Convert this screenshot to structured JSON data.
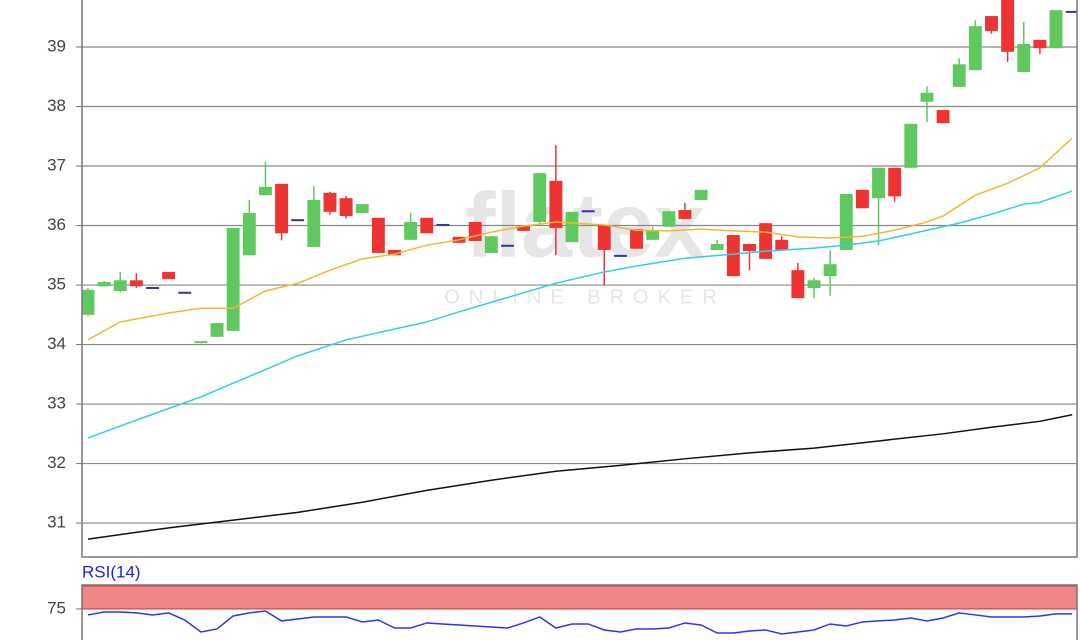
{
  "chart_data": [
    {
      "type": "candlestick",
      "watermark": {
        "title": "flatex",
        "subtitle": "ONLINE BROKER"
      },
      "xlim": [
        -0.37,
        61.3
      ],
      "ylim": [
        30.43,
        39.79
      ],
      "yticks": [
        31,
        32,
        33,
        34,
        35,
        36,
        37,
        38,
        39
      ],
      "grid": true,
      "up_color": "#5fc95f",
      "down_color": "#ee3333",
      "doji_color": "#3333aa",
      "candles": {
        "open": [
          34.5,
          34.98,
          34.9,
          35.08,
          34.95,
          35.22,
          34.87,
          34.02,
          34.13,
          34.23,
          35.5,
          36.51,
          36.7,
          36.09,
          35.64,
          36.55,
          36.46,
          36.21,
          36.13,
          35.59,
          35.76,
          36.13,
          36.01,
          35.81,
          36.06,
          35.54,
          35.66,
          35.99,
          36.06,
          36.75,
          35.72,
          36.24,
          36.01,
          35.49,
          35.94,
          35.76,
          35.98,
          36.26,
          36.43,
          35.59,
          35.84,
          35.69,
          36.04,
          35.76,
          35.25,
          34.95,
          35.15,
          35.59,
          36.6,
          36.46,
          36.97,
          36.97,
          38.08,
          37.94,
          38.33,
          38.61,
          39.52,
          39.8,
          38.58,
          39.12,
          38.98,
          39.59
        ],
        "high": [
          34.95,
          35.07,
          35.22,
          35.2,
          34.95,
          35.22,
          34.87,
          34.04,
          34.36,
          35.96,
          36.43,
          37.07,
          36.7,
          36.09,
          36.66,
          36.57,
          36.5,
          36.36,
          36.13,
          35.59,
          36.21,
          36.13,
          36.01,
          35.81,
          36.06,
          35.82,
          35.66,
          35.99,
          36.88,
          37.35,
          36.23,
          36.24,
          36.01,
          35.49,
          35.94,
          35.98,
          36.24,
          36.38,
          36.6,
          35.76,
          35.84,
          35.69,
          36.04,
          35.82,
          35.37,
          35.12,
          35.59,
          36.53,
          36.6,
          36.97,
          36.97,
          37.71,
          38.34,
          37.94,
          38.81,
          39.45,
          39.52,
          39.85,
          39.42,
          39.12,
          39.62,
          39.59
        ],
        "low": [
          34.48,
          34.97,
          34.88,
          34.95,
          34.95,
          35.1,
          34.87,
          34.02,
          34.13,
          34.23,
          35.5,
          36.51,
          35.75,
          36.09,
          35.64,
          36.18,
          36.12,
          36.21,
          35.54,
          35.5,
          35.76,
          35.87,
          36.01,
          35.71,
          35.74,
          35.54,
          35.66,
          35.91,
          36.02,
          35.5,
          35.72,
          36.24,
          35.0,
          35.49,
          35.61,
          35.76,
          35.98,
          36.11,
          36.43,
          35.59,
          35.15,
          35.25,
          35.44,
          35.59,
          34.78,
          34.78,
          34.82,
          35.59,
          36.29,
          35.67,
          36.4,
          36.97,
          37.74,
          37.72,
          38.33,
          38.61,
          39.22,
          38.75,
          38.58,
          38.88,
          38.98,
          39.59
        ],
        "close": [
          34.92,
          35.05,
          35.08,
          34.98,
          34.95,
          35.1,
          34.87,
          34.04,
          34.36,
          35.96,
          36.21,
          36.65,
          35.87,
          36.09,
          36.43,
          36.23,
          36.16,
          36.36,
          35.54,
          35.5,
          36.06,
          35.87,
          36.01,
          35.71,
          35.74,
          35.82,
          35.66,
          35.91,
          36.88,
          35.96,
          36.23,
          36.24,
          35.59,
          35.49,
          35.61,
          35.92,
          36.24,
          36.11,
          36.6,
          35.69,
          35.15,
          35.57,
          35.44,
          35.59,
          34.78,
          35.08,
          35.35,
          36.53,
          36.29,
          36.97,
          36.49,
          37.71,
          38.23,
          37.72,
          38.71,
          39.35,
          39.27,
          38.92,
          39.05,
          38.98,
          39.62,
          39.59
        ]
      },
      "series": [
        {
          "color": "#f5b731",
          "x": [
            0,
            2,
            5,
            7,
            9,
            11,
            13,
            15,
            17,
            19,
            21,
            23,
            25,
            27,
            29,
            32,
            34,
            36,
            38,
            40,
            42,
            44,
            46,
            48,
            50,
            52,
            53,
            55,
            57,
            59,
            61
          ],
          "values": [
            34.08,
            34.38,
            34.53,
            34.61,
            34.61,
            34.9,
            35.03,
            35.25,
            35.44,
            35.52,
            35.67,
            35.76,
            35.89,
            35.99,
            36.06,
            36.01,
            35.92,
            35.91,
            35.94,
            35.91,
            35.89,
            35.81,
            35.79,
            35.82,
            35.92,
            36.06,
            36.16,
            36.51,
            36.71,
            36.97,
            37.47
          ]
        },
        {
          "color": "#33ccee",
          "x": [
            0,
            3,
            7,
            9,
            13,
            16,
            21,
            23,
            27,
            29,
            32,
            34,
            37,
            40,
            42,
            45,
            47,
            49,
            51,
            54,
            56,
            58,
            59,
            61
          ],
          "values": [
            32.43,
            32.73,
            33.12,
            33.35,
            33.81,
            34.08,
            34.38,
            34.55,
            34.87,
            35.03,
            35.22,
            35.32,
            35.45,
            35.52,
            35.57,
            35.62,
            35.67,
            35.74,
            35.86,
            36.04,
            36.19,
            36.36,
            36.39,
            36.58
          ]
        },
        {
          "color": "#111111",
          "x": [
            0,
            5,
            9,
            13,
            17,
            21,
            25,
            29,
            33,
            37,
            41,
            45,
            49,
            53,
            56,
            59,
            61
          ],
          "values": [
            30.73,
            30.92,
            31.05,
            31.18,
            31.35,
            31.55,
            31.72,
            31.87,
            31.97,
            32.08,
            32.18,
            32.26,
            32.38,
            32.5,
            32.61,
            32.71,
            32.82
          ]
        }
      ]
    },
    {
      "type": "line",
      "title": "RSI(14)",
      "xlim": [
        -0.37,
        61.3
      ],
      "ylim": [
        41.3,
        101
      ],
      "yticks": [
        75
      ],
      "band": [
        75,
        100
      ],
      "band_color": "#f28585",
      "color": "#3333ee",
      "values": [
        68.5,
        71.7,
        71.7,
        70.7,
        68.5,
        70.7,
        63.0,
        50.0,
        53.3,
        67.4,
        70.7,
        72.8,
        62.0,
        64.1,
        66.3,
        66.3,
        66.3,
        60.9,
        63.0,
        54.3,
        54.3,
        59.8,
        58.7,
        57.6,
        56.5,
        55.4,
        54.3,
        59.8,
        66.3,
        54.3,
        58.7,
        58.7,
        52.2,
        50.0,
        53.3,
        53.3,
        54.3,
        59.8,
        57.6,
        48.9,
        48.9,
        51.1,
        52.2,
        47.8,
        50.0,
        52.2,
        58.7,
        56.5,
        60.9,
        62.0,
        63.0,
        65.2,
        62.0,
        65.2,
        70.7,
        68.5,
        66.3,
        66.3,
        66.3,
        67.4,
        69.6,
        69.6
      ]
    }
  ]
}
